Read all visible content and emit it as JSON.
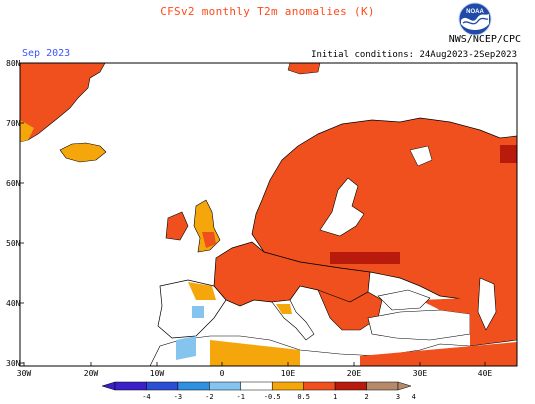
{
  "header": {
    "title": "CFSv2 monthly T2m anomalies (K)",
    "month": "Sep 2023",
    "initial_conditions": "Initial conditions: 24Aug2023-2Sep2023",
    "agency": "NWS/NCEP/CPC",
    "logo_text": "NOAA"
  },
  "axes": {
    "lat_labels": [
      "80N",
      "70N",
      "60N",
      "50N",
      "40N",
      "30N"
    ],
    "lon_labels": [
      "30W",
      "20W",
      "10W",
      "0",
      "10E",
      "20E",
      "30E",
      "40E"
    ]
  },
  "colorbar": {
    "labels": [
      "-4",
      "-3",
      "-2",
      "-1",
      "-0.5",
      "0.5",
      "1",
      "2",
      "3",
      "4"
    ],
    "colors": [
      "#3c1fc8",
      "#2c4ed6",
      "#2f8fe0",
      "#86c4f0",
      "#ffffff",
      "#f5a60b",
      "#f0501e",
      "#b81a0c",
      "#b58a6a"
    ]
  },
  "colors": {
    "land_outline": "#000000",
    "anomaly_05_1": "#f5a60b",
    "anomaly_1_2": "#f0501e",
    "anomaly_2_3": "#b81a0c",
    "cold_anomaly": "#86c4f0"
  }
}
